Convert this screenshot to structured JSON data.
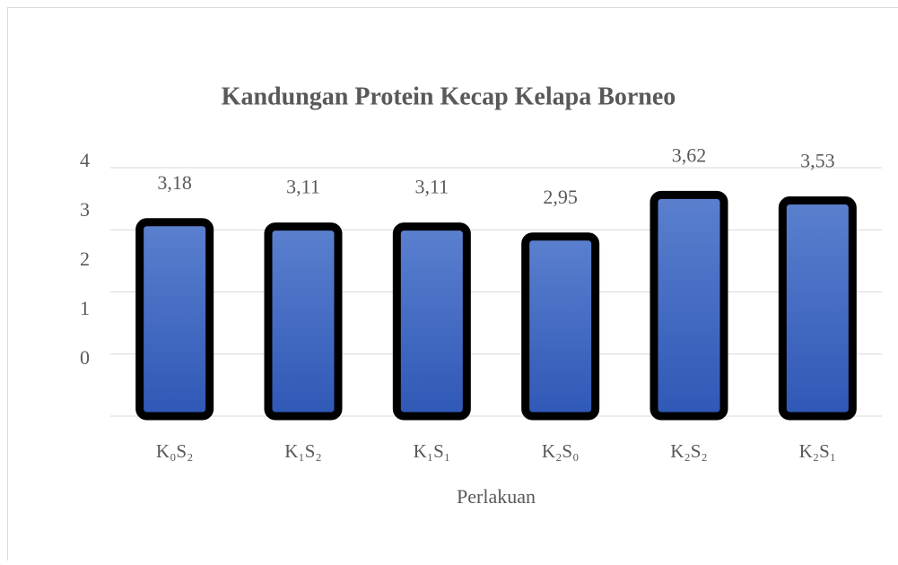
{
  "chart_data": {
    "type": "bar",
    "title": "Kandungan Protein Kecap Kelapa Borneo",
    "x_label": "Perlakuan",
    "categories": [
      "K₀S₂",
      "K₁S₂",
      "K₁S₁",
      "K₂S₀",
      "K₂S₂",
      "K₂S₁"
    ],
    "values": [
      3.18,
      3.11,
      3.11,
      2.95,
      3.62,
      3.53
    ],
    "value_labels": [
      "3,18",
      "3,11",
      "3,11",
      "2,95",
      "3,62",
      "3,53"
    ],
    "color": "#3a64bd",
    "ylim": [
      0,
      4
    ],
    "yticks": [
      0,
      1,
      2,
      3,
      4
    ],
    "grid": true
  }
}
